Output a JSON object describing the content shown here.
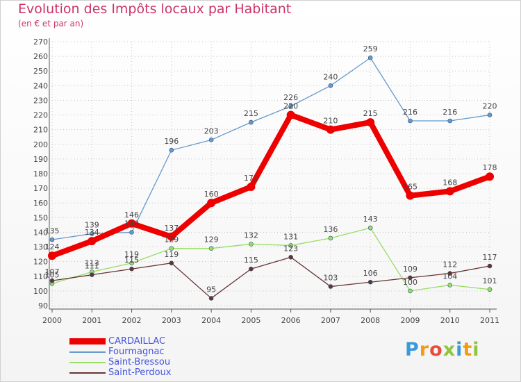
{
  "chart_data": {
    "type": "line",
    "title": "Evolution des Impôts locaux par Habitant",
    "subtitle": "(en € et par an)",
    "xlabel": "",
    "ylabel": "",
    "x": [
      "2000",
      "2001",
      "2002",
      "2003",
      "2004",
      "2005",
      "2006",
      "2007",
      "2008",
      "2009",
      "2010",
      "2011"
    ],
    "yticks": [
      90,
      100,
      110,
      120,
      130,
      140,
      150,
      160,
      170,
      180,
      190,
      200,
      210,
      220,
      230,
      240,
      250,
      260,
      270
    ],
    "ylim": [
      90,
      270
    ],
    "grid": true,
    "legend_position": "bottom-left",
    "series": [
      {
        "name": "CARDAILLAC",
        "color": "#ee0000",
        "values": [
          124,
          134,
          146,
          137,
          160,
          171,
          220,
          210,
          215,
          165,
          168,
          178
        ]
      },
      {
        "name": "Fourmagnac",
        "color": "#6699cc",
        "values": [
          135,
          139,
          140,
          196,
          203,
          215,
          226,
          240,
          259,
          216,
          216,
          220
        ]
      },
      {
        "name": "Saint-Bressou",
        "color": "#99dd66",
        "values": [
          105,
          113,
          119,
          129,
          129,
          132,
          131,
          136,
          143,
          100,
          104,
          101
        ]
      },
      {
        "name": "Saint-Perdoux",
        "color": "#663333",
        "values": [
          107,
          111,
          115,
          119,
          95,
          115,
          123,
          103,
          106,
          109,
          112,
          117
        ]
      }
    ]
  },
  "brand": {
    "letters": [
      "P",
      "r",
      "o",
      "x",
      "i",
      "t",
      "i"
    ]
  }
}
